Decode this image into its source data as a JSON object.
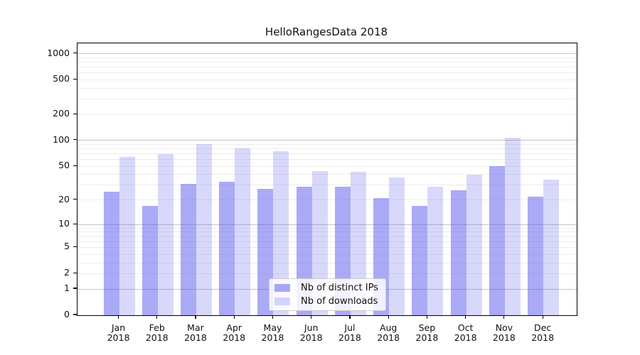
{
  "title": "HelloRangesData 2018",
  "chart_data": {
    "type": "bar",
    "title": "HelloRangesData 2018",
    "categories": [
      "Jan",
      "Feb",
      "Mar",
      "Apr",
      "May",
      "Jun",
      "Jul",
      "Aug",
      "Sep",
      "Oct",
      "Nov",
      "Dec"
    ],
    "year_label": "2018",
    "series": [
      {
        "name": "Nb of distinct IPs",
        "color": "rgba(85,85,238,0.5)",
        "values": [
          25,
          17,
          31,
          33,
          27,
          29,
          29,
          21,
          17,
          26,
          50,
          22
        ]
      },
      {
        "name": "Nb of downloads",
        "color": "rgba(85,85,238,0.23)",
        "values": [
          65,
          69,
          91,
          81,
          75,
          44,
          43,
          37,
          29,
          40,
          108,
          35
        ]
      }
    ],
    "y_scale": "log10(1+y)",
    "y_ticks": [
      1000,
      500,
      200,
      100,
      50,
      20,
      10,
      5,
      2,
      1,
      0
    ],
    "ylim": [
      0,
      1320
    ],
    "grid": {
      "major_lines": [
        1,
        10,
        100,
        1000
      ],
      "minor_multiples": [
        2,
        3,
        4,
        5,
        6,
        7,
        8,
        9
      ],
      "legend_position": "lower center inside"
    }
  },
  "colors": {
    "axis": "#000000",
    "major_grid": "#c4c4c4",
    "minor_grid": "#ededed",
    "background": "#ffffff"
  }
}
